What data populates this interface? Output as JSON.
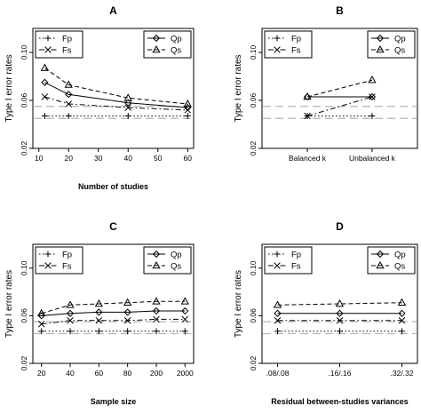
{
  "chart_data": [
    {
      "type": "line",
      "title": "A",
      "xlabel": "Number of studies",
      "ylabel": "Type I error rates",
      "x_scale": "linear",
      "x": [
        12,
        20,
        40,
        60
      ],
      "x_ticks": [
        10,
        20,
        30,
        40,
        50,
        60
      ],
      "xlim": [
        8,
        62
      ],
      "ylim": [
        0.02,
        0.12
      ],
      "y_ticks": [
        0.02,
        0.06,
        0.1
      ],
      "y_tick_labels": [
        "0.02",
        "0.06",
        "0.10"
      ],
      "reference_lines": [
        0.045,
        0.055
      ],
      "series": [
        {
          "name": "Fp",
          "marker": "plus",
          "dash": "dotted",
          "values": [
            0.047,
            0.047,
            0.047,
            0.047
          ]
        },
        {
          "name": "Fs",
          "marker": "cross",
          "dash": "dashdot",
          "values": [
            0.063,
            0.057,
            0.054,
            0.052
          ]
        },
        {
          "name": "Qp",
          "marker": "diamond",
          "dash": "solid",
          "values": [
            0.075,
            0.065,
            0.058,
            0.054
          ]
        },
        {
          "name": "Qs",
          "marker": "triangle",
          "dash": "dashed",
          "values": [
            0.087,
            0.073,
            0.062,
            0.057
          ]
        }
      ]
    },
    {
      "type": "line",
      "title": "B",
      "xlabel": "",
      "ylabel": "Type I error rates",
      "x_scale": "categorical",
      "categories": [
        "Balanced k",
        "Unbalanced k"
      ],
      "xlim": [
        0.3,
        2.7
      ],
      "ylim": [
        0.02,
        0.12
      ],
      "y_ticks": [
        0.02,
        0.06,
        0.1
      ],
      "y_tick_labels": [
        "0.02",
        "0.06",
        "0.10"
      ],
      "reference_lines": [
        0.045,
        0.055
      ],
      "series": [
        {
          "name": "Fp",
          "marker": "plus",
          "dash": "dotted",
          "values": [
            0.047,
            0.047
          ]
        },
        {
          "name": "Fs",
          "marker": "cross",
          "dash": "dashdot",
          "values": [
            0.047,
            0.063
          ]
        },
        {
          "name": "Qp",
          "marker": "diamond",
          "dash": "solid",
          "values": [
            0.063,
            0.063
          ]
        },
        {
          "name": "Qs",
          "marker": "triangle",
          "dash": "dashed",
          "values": [
            0.063,
            0.077
          ]
        }
      ]
    },
    {
      "type": "line",
      "title": "C",
      "xlabel": "Sample size",
      "ylabel": "Type I error rates",
      "x_scale": "categorical",
      "categories": [
        "20",
        "40",
        "60",
        "80",
        "200",
        "2000"
      ],
      "xlim": [
        0.7,
        6.3
      ],
      "ylim": [
        0.02,
        0.12
      ],
      "y_ticks": [
        0.02,
        0.06,
        0.1
      ],
      "y_tick_labels": [
        "0.02",
        "0.06",
        "0.10"
      ],
      "reference_lines": [
        0.045,
        0.055
      ],
      "series": [
        {
          "name": "Fp",
          "marker": "plus",
          "dash": "dotted",
          "values": [
            0.047,
            0.047,
            0.047,
            0.047,
            0.047,
            0.047
          ]
        },
        {
          "name": "Fs",
          "marker": "cross",
          "dash": "dashdot",
          "values": [
            0.053,
            0.056,
            0.056,
            0.056,
            0.057,
            0.057
          ]
        },
        {
          "name": "Qp",
          "marker": "diamond",
          "dash": "solid",
          "values": [
            0.06,
            0.062,
            0.063,
            0.063,
            0.064,
            0.064
          ]
        },
        {
          "name": "Qs",
          "marker": "triangle",
          "dash": "dashed",
          "values": [
            0.062,
            0.069,
            0.07,
            0.071,
            0.072,
            0.072
          ]
        }
      ]
    },
    {
      "type": "line",
      "title": "D",
      "xlabel": "Residual between-studies variances",
      "ylabel": "Type I error rates",
      "x_scale": "categorical",
      "categories": [
        ".08/.08",
        ".16/.16",
        ".32/.32"
      ],
      "xlim": [
        0.75,
        3.25
      ],
      "ylim": [
        0.02,
        0.12
      ],
      "y_ticks": [
        0.02,
        0.06,
        0.1
      ],
      "y_tick_labels": [
        "0.02",
        "0.06",
        "0.10"
      ],
      "reference_lines": [
        0.045,
        0.055
      ],
      "series": [
        {
          "name": "Fp",
          "marker": "plus",
          "dash": "dotted",
          "values": [
            0.047,
            0.047,
            0.047
          ]
        },
        {
          "name": "Fs",
          "marker": "cross",
          "dash": "dashdot",
          "values": [
            0.056,
            0.056,
            0.056
          ]
        },
        {
          "name": "Qp",
          "marker": "diamond",
          "dash": "solid",
          "values": [
            0.062,
            0.062,
            0.062
          ]
        },
        {
          "name": "Qs",
          "marker": "triangle",
          "dash": "dashed",
          "values": [
            0.069,
            0.07,
            0.071
          ]
        }
      ]
    }
  ]
}
